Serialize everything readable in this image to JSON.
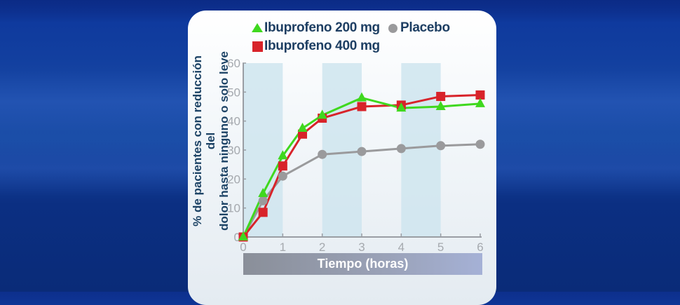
{
  "chart_data": {
    "type": "line",
    "title": "",
    "xlabel": "Tiempo (horas)",
    "ylabel": "% de pacientes con reducción del dolor hasta ninguno o solo leve",
    "ylabel_lines": [
      "% de pacientes con reducción del",
      "dolor hasta ninguno o solo leve"
    ],
    "xlim": [
      0,
      6
    ],
    "ylim": [
      0,
      60
    ],
    "x_ticks": [
      0,
      1,
      2,
      3,
      4,
      5,
      6
    ],
    "y_ticks": [
      0,
      10,
      20,
      30,
      40,
      50,
      60
    ],
    "grid": false,
    "shaded_bands": [
      [
        0,
        1
      ],
      [
        2,
        3
      ],
      [
        4,
        5
      ]
    ],
    "legend_position": "top",
    "series": [
      {
        "name": "Ibuprofeno 200 mg",
        "marker": "triangle",
        "color": "#3fd81e",
        "x": [
          0,
          0.5,
          1,
          1.5,
          2,
          3,
          4,
          5,
          6
        ],
        "values": [
          0,
          15,
          28,
          37.5,
          42,
          48,
          44.5,
          45,
          46
        ]
      },
      {
        "name": "Ibuprofeno 400 mg",
        "marker": "square",
        "color": "#d8232a",
        "x": [
          0,
          0.5,
          1,
          1.5,
          2,
          3,
          4,
          5,
          6
        ],
        "values": [
          0,
          8.5,
          24.5,
          35.5,
          41,
          45,
          45.5,
          48.5,
          49
        ]
      },
      {
        "name": "Placebo",
        "marker": "circle",
        "color": "#9a9a9c",
        "x": [
          0,
          0.5,
          1,
          2,
          3,
          4,
          5,
          6
        ],
        "values": [
          0,
          12.5,
          21,
          28.5,
          29.5,
          30.5,
          31.5,
          32
        ]
      }
    ]
  },
  "legend": {
    "items": [
      {
        "label": "Ibuprofeno 200 mg",
        "icon": "triangle-marker"
      },
      {
        "label": "Placebo",
        "icon": "circle-marker"
      },
      {
        "label": "Ibuprofeno 400 mg",
        "icon": "square-marker"
      }
    ]
  },
  "axis": {
    "x_title": "Tiempo (horas)",
    "y_title_line1": "% de pacientes con reducción del",
    "y_title_line2": "dolor hasta ninguno o solo leve"
  },
  "colors": {
    "green": "#3fd81e",
    "red": "#d8232a",
    "grey": "#9a9a9c",
    "axis": "#9a9ea4",
    "tick_label": "#a5a9ae",
    "band": "#cfe5ee",
    "label_text": "#1e3f63"
  }
}
